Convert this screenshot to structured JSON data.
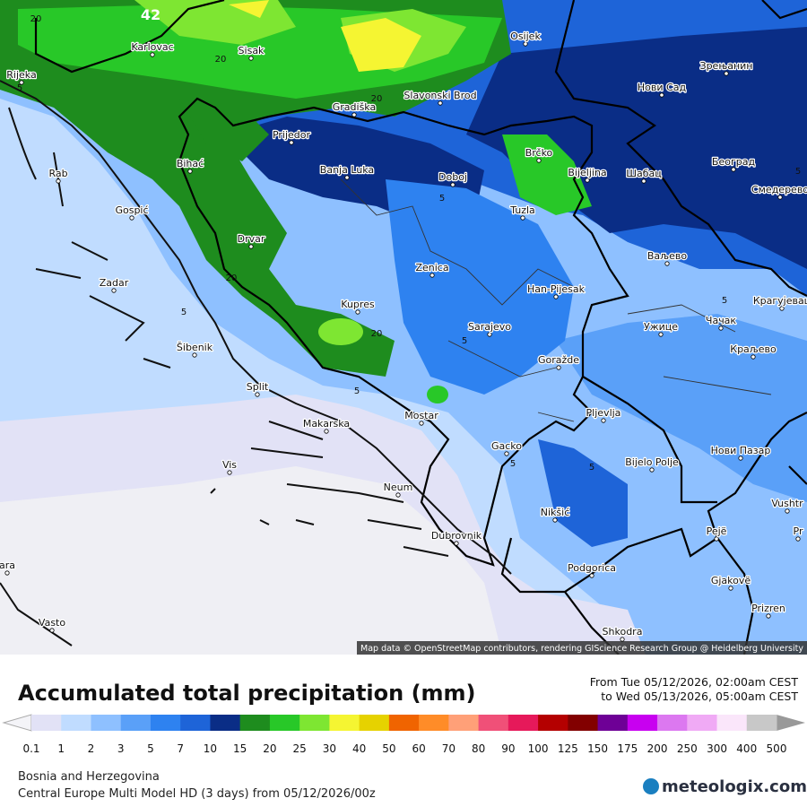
{
  "map": {
    "title": "Accumulated total precipitation (mm)",
    "period_from": "From Tue 05/12/2026, 02:00am CEST",
    "period_to": "to Wed 05/13/2026, 05:00am CEST",
    "attribution": "Map data © OpenStreetMap contributors, rendering GIScience Research Group @ Heidelberg University",
    "region": "Bosnia and Herzegovina",
    "model": "Central Europe Multi Model HD (3 days) from  05/12/2026/00z",
    "logo": "meteologix.com",
    "cities": [
      "Karlovac",
      "Sisak",
      "Osijek",
      "Зрењанин",
      "Rijeka",
      "Gradiška",
      "Slavonski Brod",
      "Нови Сад",
      "Prijedor",
      "Brčko",
      "Београд",
      "Bihać",
      "Banja Luka",
      "Doboj",
      "Bijeljina",
      "Шабац",
      "Смедерево",
      "Rab",
      "Gospić",
      "Tuzla",
      "Drvar",
      "Ваљево",
      "Zenica",
      "Zadar",
      "Han-Pijesak",
      "Крагујевац",
      "Kupres",
      "Sarajevo",
      "Ужице",
      "Чачак",
      "Šibenik",
      "Краљево",
      "Goražde",
      "Split",
      "Mostar",
      "Pljevlja",
      "Makarska",
      "Gacko",
      "Bijelo Polje",
      "Нови Пазар",
      "Vis",
      "Neum",
      "Nikšić",
      "Vushtr",
      "Pejë",
      "Dubrovnik",
      "Pr",
      "Podgorica",
      "Gjakovë",
      "ara",
      "Prizren",
      "Vasto",
      "Shkodra"
    ],
    "contour_labels": [
      42,
      20,
      20,
      20,
      20,
      5,
      5,
      5,
      5,
      5,
      5,
      5,
      5,
      20,
      5
    ]
  },
  "legend": {
    "ticks": [
      0.1,
      1,
      2,
      3,
      5,
      7,
      10,
      15,
      20,
      25,
      30,
      40,
      50,
      60,
      70,
      80,
      90,
      100,
      125,
      150,
      175,
      200,
      250,
      300,
      400,
      500
    ],
    "colors": [
      "#e2e2f6",
      "#c0dcff",
      "#8ec0ff",
      "#5aa0f8",
      "#2e82f0",
      "#1e64d8",
      "#0a2d86",
      "#1e8c1e",
      "#28c828",
      "#7ee632",
      "#f5f532",
      "#e6d200",
      "#f06400",
      "#ff8c28",
      "#ffa078",
      "#f05078",
      "#e6195a",
      "#b40000",
      "#820000",
      "#6e0096",
      "#c800f0",
      "#dc78f0",
      "#f0aaf5",
      "#fae6fa",
      "#c8c8c8"
    ]
  }
}
